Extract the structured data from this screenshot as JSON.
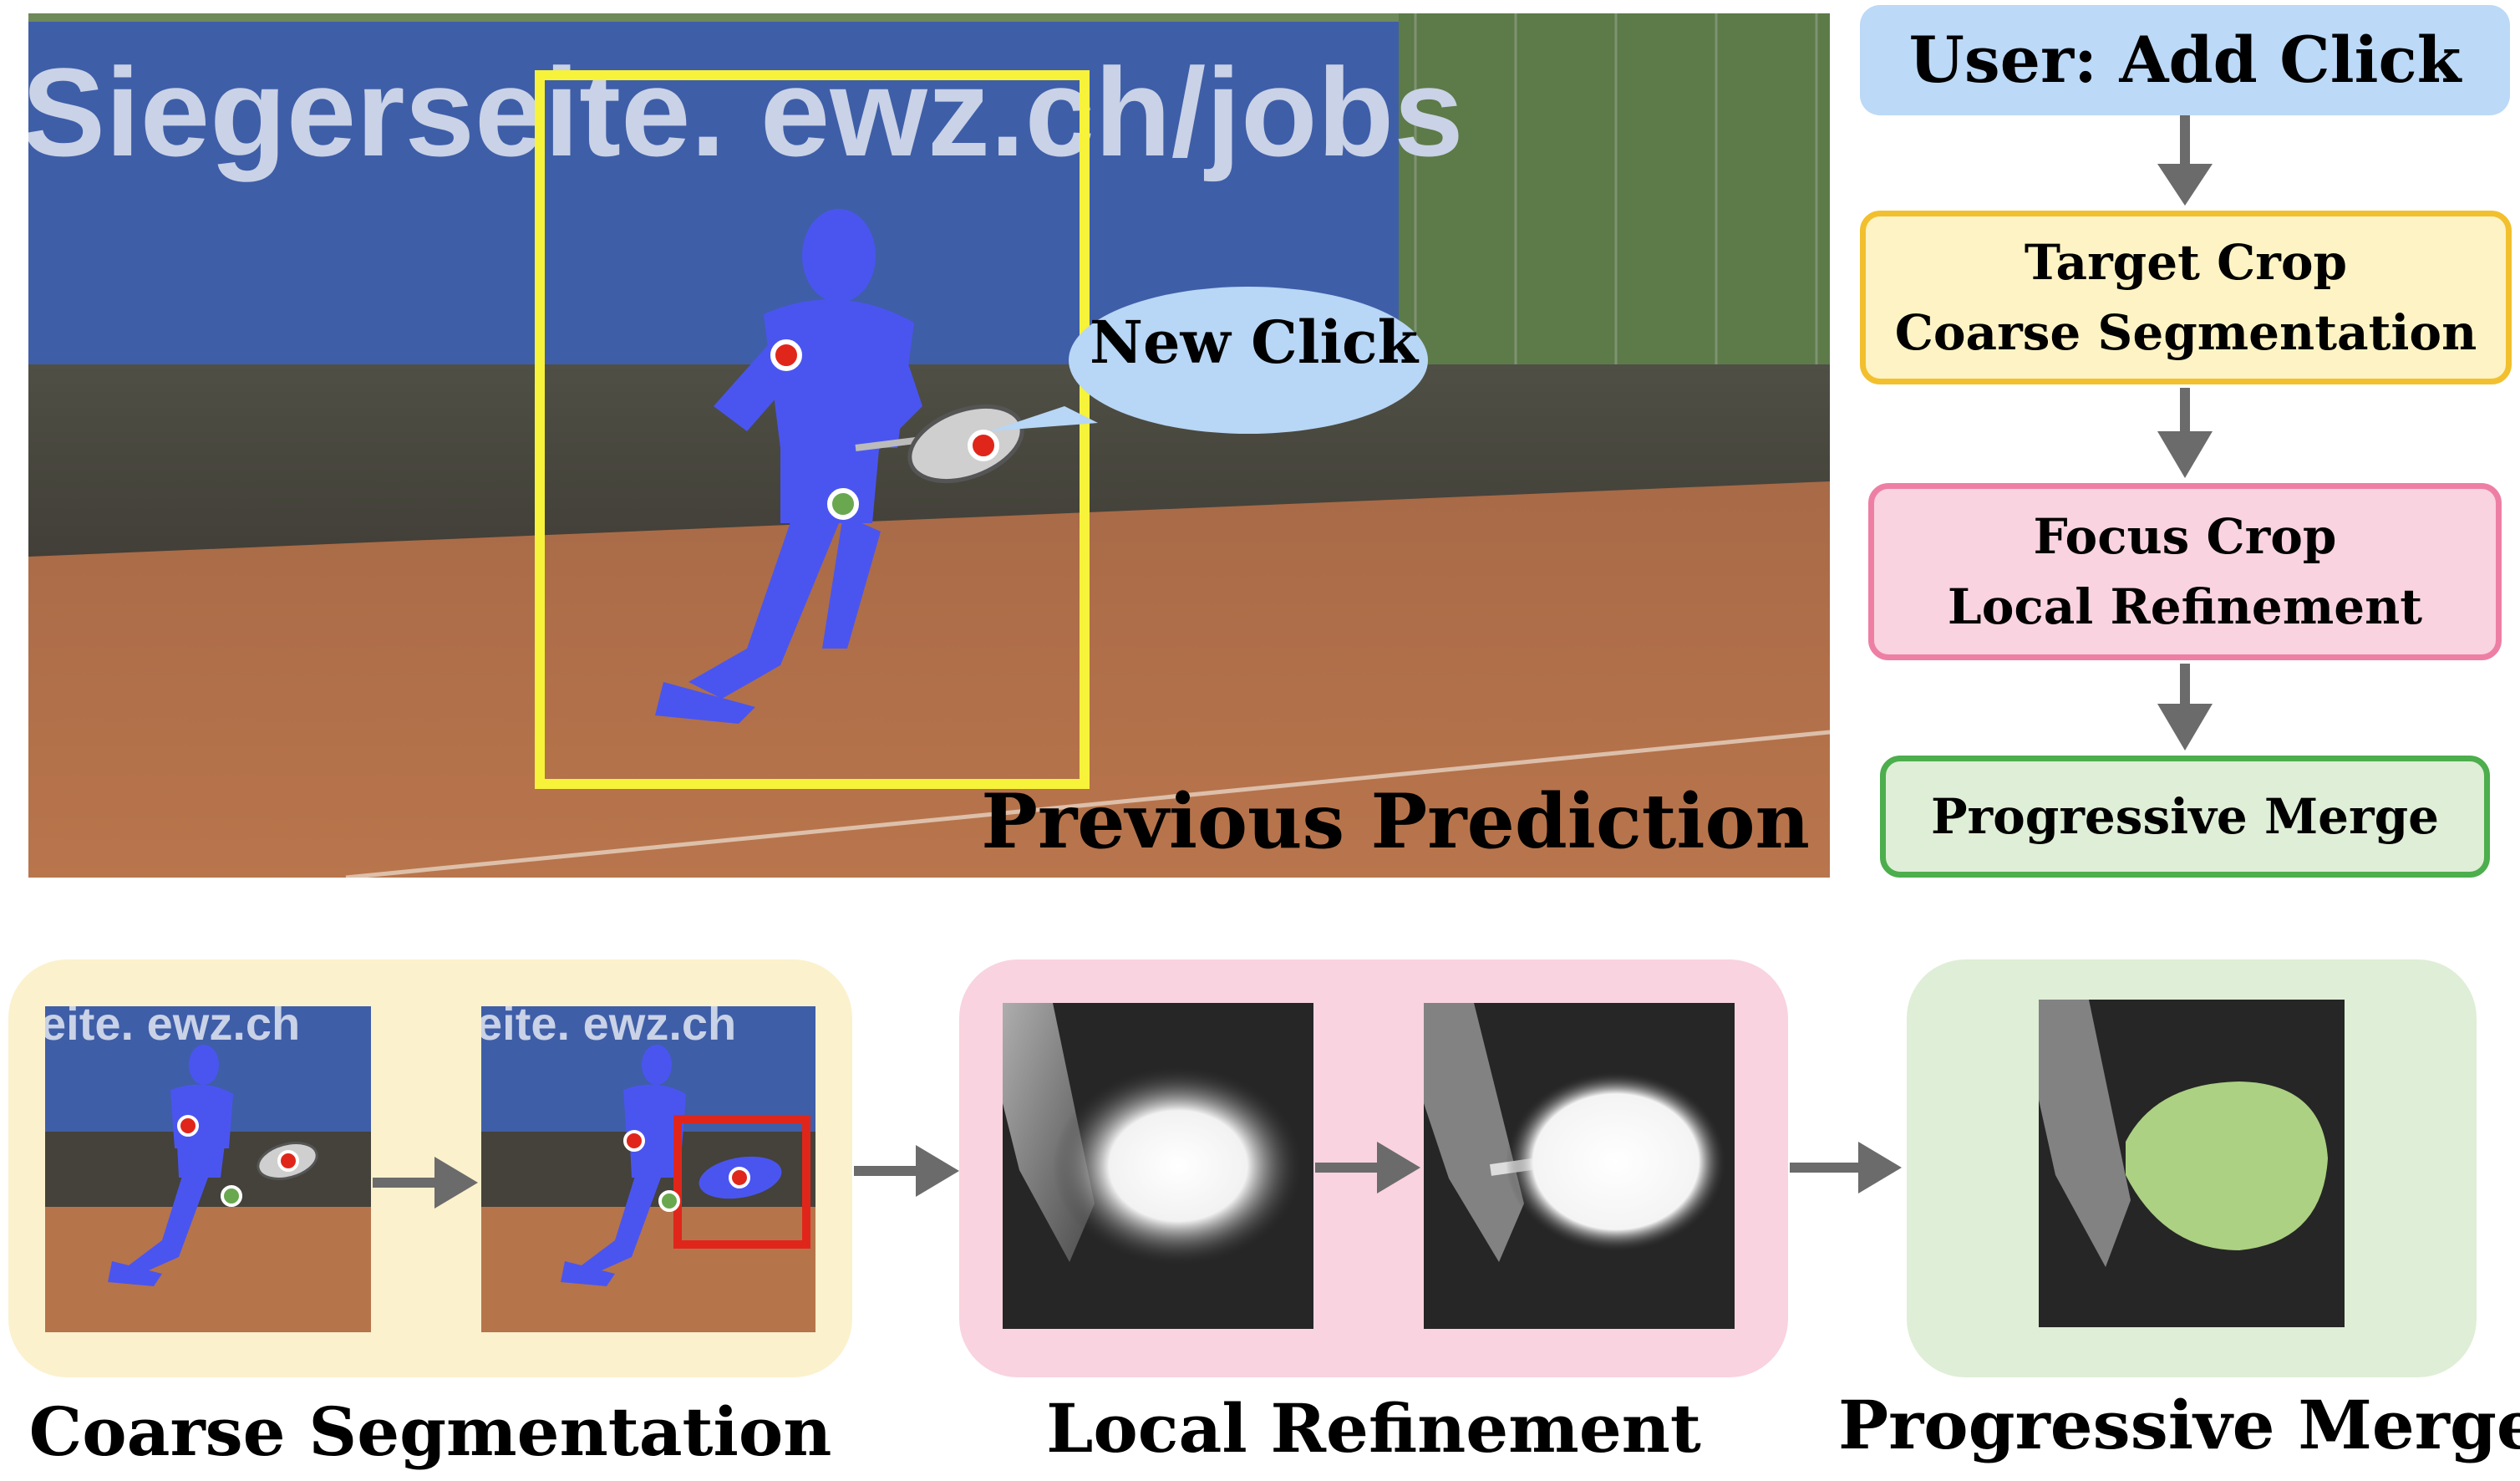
{
  "main_image": {
    "banner_text": "Siegerseite. ewz.ch/jobs",
    "caption": "Previous Prediction",
    "callout": "New Click"
  },
  "flow": {
    "step1": "User: Add Click",
    "step2_line1": "Target Crop",
    "step2_line2": "Coarse Segmentation",
    "step3_line1": "Focus Crop",
    "step3_line2": "Local Refinement",
    "step4": "Progressive Merge"
  },
  "panels": {
    "coarse": {
      "label": "Coarse Segmentation",
      "thumb1_banner": "eite. ewz.ch",
      "thumb2_banner": "eite. ewz.ch"
    },
    "local": {
      "label": "Local Refinement"
    },
    "merge": {
      "label": "Progressive Merge"
    }
  },
  "colors": {
    "box_yellow": "#f7f23a",
    "crop_red": "#e0261b",
    "mask_blue": "#4a55f0",
    "merge_green": "#b7e08a",
    "flow_blue": "#bcd9f7",
    "flow_yellow": "#fdf3c4",
    "flow_pink": "#f9d3df",
    "flow_green": "#dfeed6",
    "arrow_gray": "#6b6b6b"
  }
}
